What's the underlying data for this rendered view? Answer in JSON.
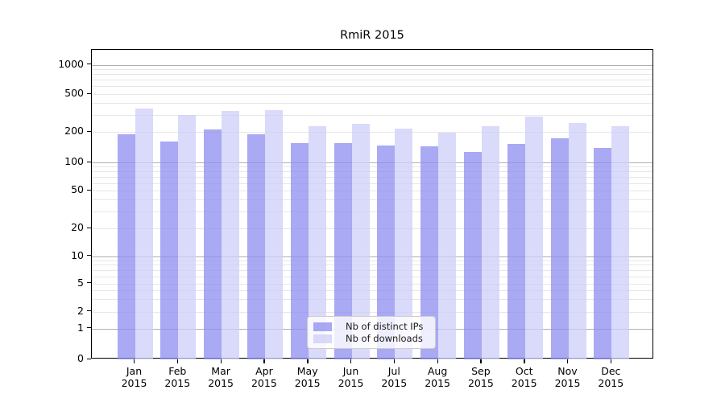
{
  "chart_data": {
    "type": "bar",
    "title": "RmiR 2015",
    "categories": [
      "Jan",
      "Feb",
      "Mar",
      "Apr",
      "May",
      "Jun",
      "Jul",
      "Aug",
      "Sep",
      "Oct",
      "Nov",
      "Dec"
    ],
    "category_year": "2015",
    "series": [
      {
        "name": "Nb of distinct IPs",
        "color": "rgba(140,140,240,0.75)",
        "values": [
          190,
          160,
          210,
          188,
          154,
          155,
          147,
          144,
          127,
          152,
          174,
          138
        ]
      },
      {
        "name": "Nb of downloads",
        "color": "rgba(206,206,248,0.75)",
        "values": [
          355,
          300,
          330,
          337,
          229,
          243,
          216,
          197,
          229,
          287,
          247,
          231
        ]
      }
    ],
    "xlabel": "",
    "ylabel": "",
    "yscale": "symlog",
    "ylim": [
      0,
      1400
    ],
    "y_ticks": [
      0,
      1,
      2,
      5,
      10,
      20,
      50,
      100,
      200,
      500,
      1000
    ],
    "grid": true,
    "legend_position": "bottom-center"
  },
  "colors": {
    "background": "#ffffff",
    "spine": "#000000",
    "grid_major": "#b0b0b0",
    "grid_minor": "#e7e7e7",
    "bar_distinct_ips": "rgba(140,140,240,0.75)",
    "bar_downloads": "rgba(206,206,248,0.75)",
    "text": "#000000"
  }
}
